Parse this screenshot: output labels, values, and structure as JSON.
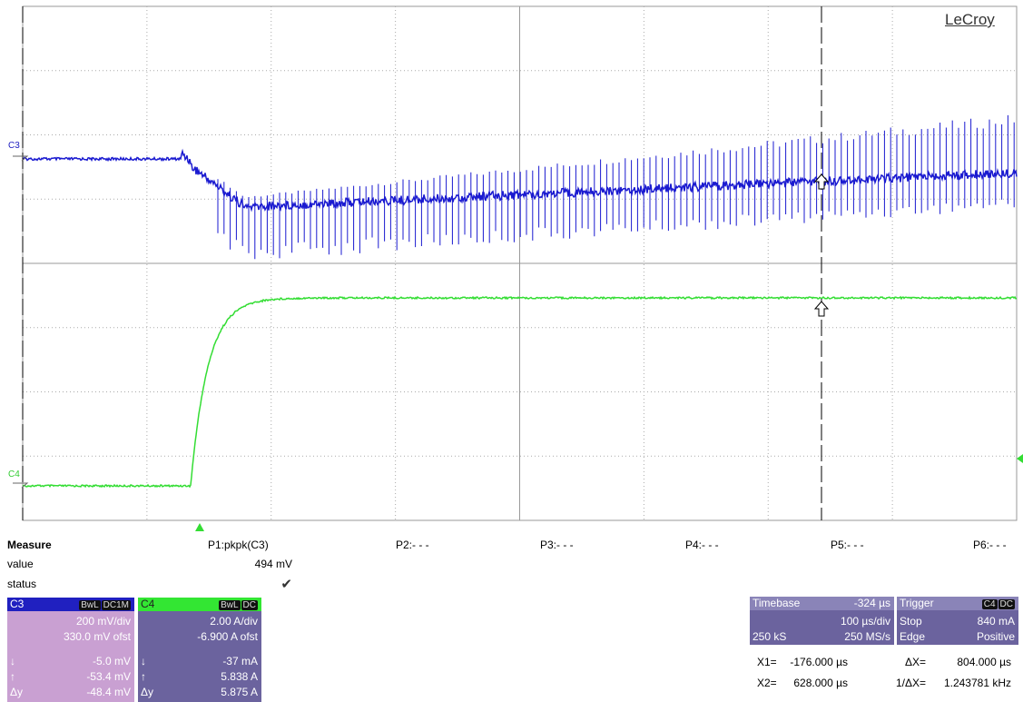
{
  "brand": "LeCroy",
  "trace_markers": [
    "C3",
    "C4"
  ],
  "measure": {
    "title": "Measure",
    "row_labels": [
      "value",
      "status"
    ],
    "params": [
      "P1:pkpk(C3)",
      "P2:- - -",
      "P3:- - -",
      "P4:- - -",
      "P5:- - -",
      "P6:- - -"
    ],
    "p1_value": "494 mV",
    "p1_status": "✔"
  },
  "channels": [
    {
      "name": "C3",
      "badges": [
        "BwL",
        "DC1M"
      ],
      "scale": "200 mV/div",
      "offset": "330.0 mV ofst",
      "rows": [
        [
          "↓",
          "-5.0 mV"
        ],
        [
          "↑",
          "-53.4 mV"
        ],
        [
          "Δy",
          "-48.4 mV"
        ]
      ]
    },
    {
      "name": "C4",
      "badges": [
        "BwL",
        "DC"
      ],
      "scale": "2.00 A/div",
      "offset": "-6.900 A ofst",
      "rows": [
        [
          "↓",
          "-37 mA"
        ],
        [
          "↑",
          "5.838 A"
        ],
        [
          "Δy",
          "5.875 A"
        ]
      ]
    }
  ],
  "timebase": {
    "title": "Timebase",
    "delay": "-324 µs",
    "scale": "100 µs/div",
    "samples": "250 kS",
    "rate": "250 MS/s"
  },
  "trigger": {
    "title": "Trigger",
    "badges": [
      "C4",
      "DC"
    ],
    "mode": "Stop",
    "level": "840 mA",
    "type": "Edge",
    "slope": "Positive"
  },
  "cursors": [
    [
      "X1=",
      "-176.000 µs",
      "ΔX=",
      "804.000 µs"
    ],
    [
      "X2=",
      "628.000 µs",
      "1/ΔX=",
      "1.243781 kHz"
    ]
  ]
}
